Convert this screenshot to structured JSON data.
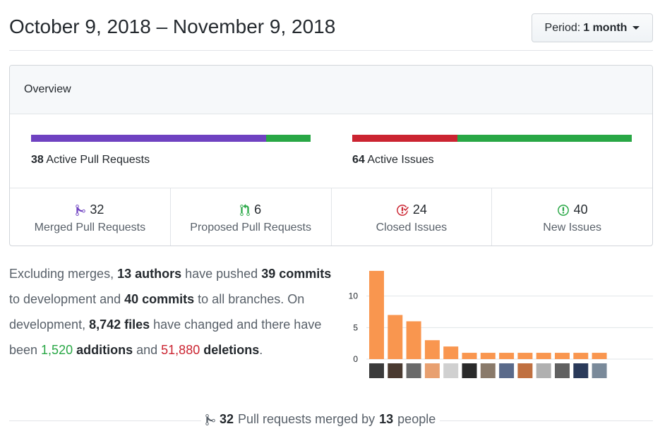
{
  "header": {
    "date_range": "October 9, 2018 – November 9, 2018",
    "period_label": "Period:",
    "period_value": "1 month"
  },
  "overview": {
    "title": "Overview",
    "pull_requests": {
      "count": "38",
      "label": "Active Pull Requests",
      "merged_fraction": 0.842,
      "merged_color": "#6f42c1",
      "open_color": "#28a745"
    },
    "issues": {
      "count": "64",
      "label": "Active Issues",
      "closed_fraction": 0.375,
      "closed_color": "#cb2431",
      "open_color": "#28a745"
    },
    "stats": [
      {
        "count": "32",
        "label": "Merged Pull Requests",
        "icon": "git-merge-icon",
        "color": "#6f42c1"
      },
      {
        "count": "6",
        "label": "Proposed Pull Requests",
        "icon": "git-pull-request-icon",
        "color": "#28a745"
      },
      {
        "count": "24",
        "label": "Closed Issues",
        "icon": "issue-closed-icon",
        "color": "#cb2431"
      },
      {
        "count": "40",
        "label": "New Issues",
        "icon": "issue-opened-icon",
        "color": "#28a745"
      }
    ]
  },
  "summary": {
    "t1": "Excluding merges, ",
    "authors": "13 authors",
    "t2": " have pushed ",
    "commits_dev": "39 commits",
    "t3": " to development and ",
    "commits_all": "40 commits",
    "t4": " to all branches. On development, ",
    "files": "8,742 files",
    "t5": " have changed and there have been ",
    "additions_num": "1,520",
    "additions_word": "additions",
    "t6": " and ",
    "deletions_num": "51,880",
    "deletions_word": "deletions",
    "t7": "."
  },
  "chart_data": {
    "type": "bar",
    "values": [
      14,
      7,
      6,
      3,
      2,
      1,
      1,
      1,
      1,
      1,
      1,
      1,
      1
    ],
    "yticks": [
      0,
      5,
      10
    ],
    "ylim": [
      0,
      15
    ],
    "bar_color": "#f9964f",
    "xlabel": "",
    "ylabel": ""
  },
  "footer": {
    "count": "32",
    "t1": "Pull requests merged by",
    "people": "13",
    "t2": "people"
  }
}
